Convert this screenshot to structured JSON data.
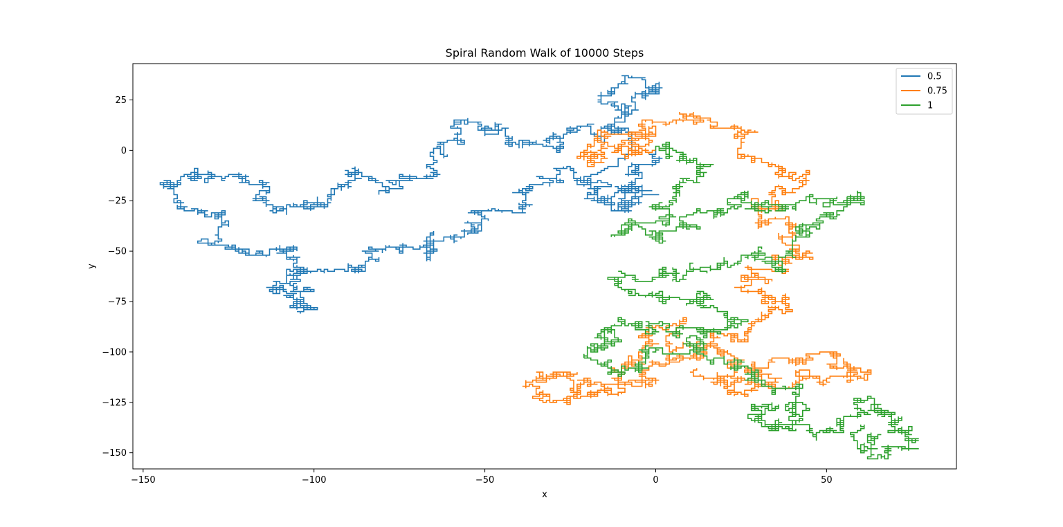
{
  "chart_data": {
    "type": "line",
    "title": "Spiral Random Walk of 10000 Steps",
    "xlabel": "x",
    "ylabel": "y",
    "xlim": [
      -153,
      88
    ],
    "ylim": [
      -158,
      43
    ],
    "xticks": [
      -150,
      -100,
      -50,
      0,
      50
    ],
    "yticks": [
      25,
      0,
      -25,
      -50,
      -75,
      -100,
      -125,
      -150
    ],
    "tick_labels_x": [
      "−150",
      "−100",
      "−50",
      "0",
      "50"
    ],
    "tick_labels_y": [
      "25",
      "0",
      "−25",
      "−50",
      "−75",
      "−100",
      "−125",
      "−150"
    ],
    "grid": false,
    "legend_position": "top-right",
    "steps": 10000,
    "series": [
      {
        "name": "0.5",
        "color": "#1f77b4",
        "anchors": [
          [
            0,
            0
          ],
          [
            -6,
            -8
          ],
          [
            -10,
            -20
          ],
          [
            -14,
            -26
          ],
          [
            -18,
            -16
          ],
          [
            -8,
            10
          ],
          [
            -12,
            24
          ],
          [
            -9,
            34
          ],
          [
            -3,
            30
          ],
          [
            0,
            30
          ],
          [
            -6,
            20
          ],
          [
            -12,
            12
          ],
          [
            -16,
            5
          ],
          [
            -24,
            10
          ],
          [
            -30,
            2
          ],
          [
            -38,
            4
          ],
          [
            -46,
            10
          ],
          [
            -54,
            14
          ],
          [
            -58,
            4
          ],
          [
            -64,
            -6
          ],
          [
            -72,
            -14
          ],
          [
            -80,
            -20
          ],
          [
            -86,
            -12
          ],
          [
            -92,
            -18
          ],
          [
            -98,
            -28
          ],
          [
            -104,
            -26
          ],
          [
            -110,
            -30
          ],
          [
            -116,
            -24
          ],
          [
            -122,
            -16
          ],
          [
            -130,
            -12
          ],
          [
            -136,
            -14
          ],
          [
            -144,
            -15
          ],
          [
            -140,
            -24
          ],
          [
            -132,
            -32
          ],
          [
            -128,
            -42
          ],
          [
            -124,
            -48
          ],
          [
            -116,
            -52
          ],
          [
            -108,
            -50
          ],
          [
            -104,
            -60
          ],
          [
            -100,
            -70
          ],
          [
            -100,
            -78
          ],
          [
            -106,
            -76
          ],
          [
            -112,
            -70
          ],
          [
            -104,
            -64
          ],
          [
            -96,
            -58
          ],
          [
            -88,
            -58
          ],
          [
            -82,
            -50
          ],
          [
            -74,
            -48
          ],
          [
            -66,
            -54
          ],
          [
            -64,
            -44
          ],
          [
            -56,
            -40
          ],
          [
            -50,
            -34
          ],
          [
            -44,
            -30
          ],
          [
            -38,
            -22
          ],
          [
            -34,
            -14
          ],
          [
            -24,
            -12
          ],
          [
            -18,
            -22
          ],
          [
            -12,
            -30
          ],
          [
            -8,
            -26
          ],
          [
            -4,
            -20
          ],
          [
            0,
            -22
          ]
        ]
      },
      {
        "name": "0.75",
        "color": "#ff7f0e",
        "anchors": [
          [
            0,
            0
          ],
          [
            -6,
            4
          ],
          [
            -14,
            8
          ],
          [
            -20,
            2
          ],
          [
            -16,
            -6
          ],
          [
            -8,
            -4
          ],
          [
            -2,
            8
          ],
          [
            6,
            14
          ],
          [
            14,
            16
          ],
          [
            24,
            8
          ],
          [
            28,
            -4
          ],
          [
            36,
            -12
          ],
          [
            38,
            -20
          ],
          [
            36,
            -30
          ],
          [
            30,
            -36
          ],
          [
            40,
            -40
          ],
          [
            44,
            -52
          ],
          [
            38,
            -56
          ],
          [
            28,
            -60
          ],
          [
            26,
            -68
          ],
          [
            34,
            -74
          ],
          [
            36,
            -80
          ],
          [
            28,
            -88
          ],
          [
            22,
            -92
          ],
          [
            14,
            -96
          ],
          [
            6,
            -90
          ],
          [
            -2,
            -94
          ],
          [
            -6,
            -102
          ],
          [
            -12,
            -110
          ],
          [
            -16,
            -116
          ],
          [
            -22,
            -120
          ],
          [
            -30,
            -114
          ],
          [
            -38,
            -119
          ],
          [
            -30,
            -124
          ],
          [
            -20,
            -122
          ],
          [
            -10,
            -116
          ],
          [
            -4,
            -112
          ],
          [
            4,
            -104
          ],
          [
            14,
            -100
          ],
          [
            22,
            -106
          ],
          [
            30,
            -110
          ],
          [
            40,
            -104
          ],
          [
            48,
            -100
          ],
          [
            54,
            -108
          ],
          [
            60,
            -112
          ],
          [
            50,
            -116
          ],
          [
            40,
            -118
          ],
          [
            30,
            -112
          ],
          [
            24,
            -120
          ],
          [
            18,
            -114
          ],
          [
            12,
            -108
          ]
        ]
      },
      {
        "name": "1",
        "color": "#2ca02c",
        "anchors": [
          [
            0,
            0
          ],
          [
            4,
            4
          ],
          [
            8,
            -4
          ],
          [
            12,
            -12
          ],
          [
            6,
            -20
          ],
          [
            0,
            -28
          ],
          [
            -8,
            -34
          ],
          [
            -10,
            -40
          ],
          [
            0,
            -44
          ],
          [
            10,
            -38
          ],
          [
            18,
            -30
          ],
          [
            24,
            -22
          ],
          [
            30,
            -28
          ],
          [
            38,
            -30
          ],
          [
            46,
            -22
          ],
          [
            56,
            -26
          ],
          [
            60,
            -24
          ],
          [
            50,
            -32
          ],
          [
            42,
            -40
          ],
          [
            40,
            -50
          ],
          [
            36,
            -56
          ],
          [
            28,
            -50
          ],
          [
            20,
            -56
          ],
          [
            10,
            -60
          ],
          [
            2,
            -62
          ],
          [
            -8,
            -66
          ],
          [
            -6,
            -72
          ],
          [
            2,
            -72
          ],
          [
            12,
            -70
          ],
          [
            18,
            -78
          ],
          [
            22,
            -86
          ],
          [
            14,
            -92
          ],
          [
            6,
            -90
          ],
          [
            -2,
            -88
          ],
          [
            -10,
            -84
          ],
          [
            -14,
            -90
          ],
          [
            -16,
            -98
          ],
          [
            -20,
            -104
          ],
          [
            -14,
            -110
          ],
          [
            -6,
            -106
          ],
          [
            2,
            -100
          ],
          [
            10,
            -96
          ],
          [
            16,
            -104
          ],
          [
            24,
            -108
          ],
          [
            32,
            -112
          ],
          [
            38,
            -118
          ],
          [
            44,
            -126
          ],
          [
            40,
            -132
          ],
          [
            32,
            -130
          ],
          [
            28,
            -128
          ],
          [
            36,
            -138
          ],
          [
            46,
            -140
          ],
          [
            54,
            -136
          ],
          [
            60,
            -130
          ],
          [
            64,
            -124
          ],
          [
            66,
            -130
          ],
          [
            70,
            -136
          ],
          [
            74,
            -140
          ],
          [
            76,
            -145
          ],
          [
            68,
            -148
          ],
          [
            62,
            -142
          ],
          [
            60,
            -136
          ]
        ]
      }
    ]
  }
}
